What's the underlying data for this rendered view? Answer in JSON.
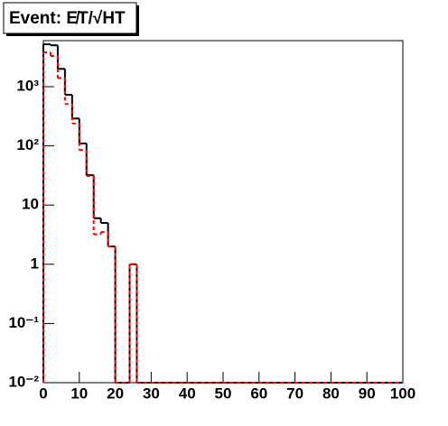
{
  "chart_data": {
    "type": "histogram",
    "title": "Event: E̸T/√HT",
    "bins": [
      0,
      2,
      4,
      6,
      8,
      10,
      12,
      14,
      16,
      18,
      20,
      22,
      24,
      26,
      28,
      30,
      32,
      34,
      36,
      38,
      40,
      42,
      44,
      46,
      48,
      50,
      52,
      54,
      56,
      58,
      60,
      62,
      64,
      66,
      68,
      70,
      72,
      74,
      76,
      78,
      80,
      82,
      84,
      86,
      88,
      90,
      92,
      94,
      96,
      98,
      100
    ],
    "series": [
      {
        "color": "#000000",
        "line_style": "solid",
        "values": [
          5200,
          5000,
          2000,
          730,
          290,
          110,
          32,
          6,
          5,
          2,
          0,
          0,
          1,
          0,
          0,
          0,
          0,
          0,
          0,
          0,
          0,
          0,
          0,
          0,
          0,
          0,
          0,
          0,
          0,
          0,
          0,
          0,
          0,
          0,
          0,
          0,
          0,
          0,
          0,
          0,
          0,
          0,
          0,
          0,
          0,
          0,
          0,
          0,
          0,
          0
        ]
      },
      {
        "color": "#ff0000",
        "line_style": "dashed",
        "values": [
          3800,
          3300,
          1400,
          510,
          240,
          85,
          31,
          3.2,
          3.5,
          2,
          0,
          0,
          1,
          0,
          0,
          0,
          0,
          0,
          0,
          0,
          0,
          0,
          0,
          0,
          0,
          0,
          0,
          0,
          0,
          0,
          0,
          0,
          0,
          0,
          0,
          0,
          0,
          0,
          0,
          0,
          0,
          0,
          0,
          0,
          0,
          0,
          0,
          0,
          0,
          0
        ]
      }
    ],
    "xlim": [
      0,
      100
    ],
    "xticks": [
      0,
      10,
      20,
      30,
      40,
      50,
      60,
      70,
      80,
      90,
      100
    ],
    "ylim": [
      0.01,
      6000
    ],
    "log_y": true,
    "yticks": [
      {
        "value": 0.01,
        "label": "10⁻²"
      },
      {
        "value": 0.1,
        "label": "10⁻¹"
      },
      1,
      10,
      {
        "value": 100,
        "label": "10²"
      },
      {
        "value": 1000,
        "label": "10³"
      }
    ]
  }
}
